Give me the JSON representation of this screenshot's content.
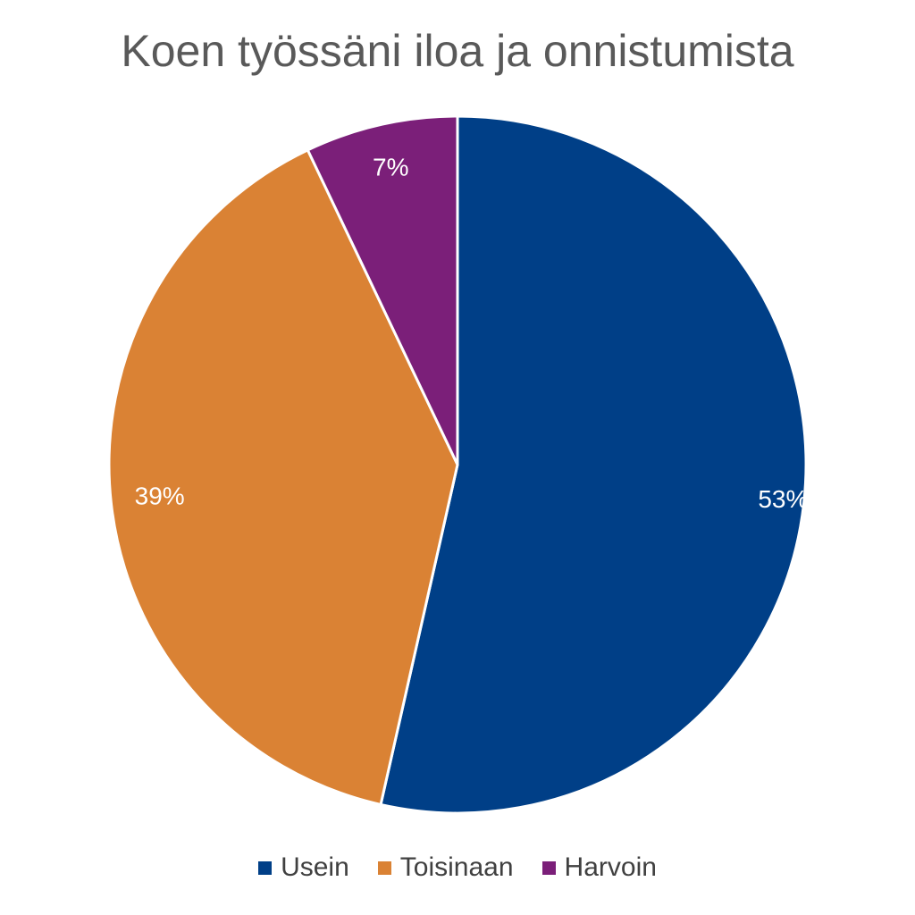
{
  "chart_data": {
    "type": "pie",
    "title": "Koen työssäni iloa ja onnistumista",
    "categories": [
      "Usein",
      "Toisinaan",
      "Harvoin"
    ],
    "values": [
      53,
      39,
      7
    ],
    "data_labels": [
      "53%",
      "39%",
      "7%"
    ],
    "colors": [
      "#003F87",
      "#DA8234",
      "#7B1F79"
    ],
    "legend_position": "bottom",
    "start_angle": "top, clockwise"
  }
}
